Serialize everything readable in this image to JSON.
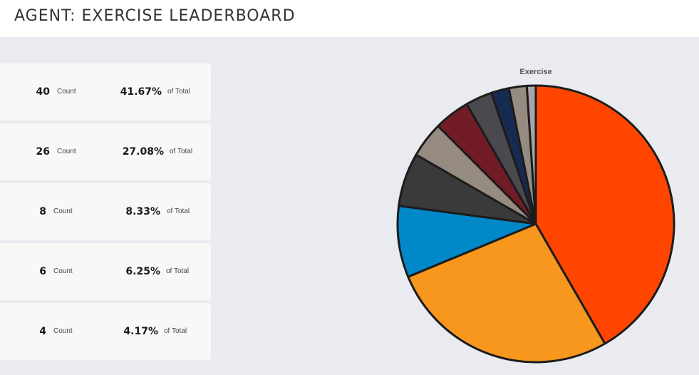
{
  "header": {
    "title": "AGENT: EXERCISE LEADERBOARD"
  },
  "cards": [
    {
      "count": "40",
      "count_label": "Count",
      "percent": "41.67%",
      "percent_label": "of Total"
    },
    {
      "count": "26",
      "count_label": "Count",
      "percent": "27.08%",
      "percent_label": "of Total"
    },
    {
      "count": "8",
      "count_label": "Count",
      "percent": "8.33%",
      "percent_label": "of Total"
    },
    {
      "count": "6",
      "count_label": "Count",
      "percent": "6.25%",
      "percent_label": "of Total"
    },
    {
      "count": "4",
      "count_label": "Count",
      "percent": "4.17%",
      "percent_label": "of Total"
    }
  ],
  "chart_data": {
    "type": "pie",
    "title": "Exercise",
    "values": [
      40,
      26,
      8,
      6,
      4,
      4,
      3,
      2,
      2,
      1
    ],
    "colors": [
      "#ff4500",
      "#f7971e",
      "#0088c9",
      "#3a3a3a",
      "#968b80",
      "#721c28",
      "#4a4a4e",
      "#172a52",
      "#968b80",
      "#a6a6a6"
    ]
  }
}
